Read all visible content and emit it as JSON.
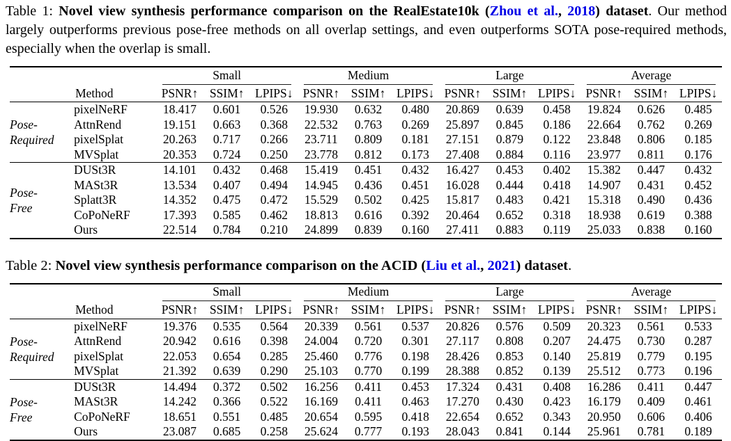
{
  "captions": {
    "t1": {
      "label": "Table 1: ",
      "title_pre": "Novel view synthesis performance comparison on the RealEstate10k (",
      "cite_authors": "Zhou et al.",
      "cite_sep": ", ",
      "cite_year": "2018",
      "title_post": ") dataset",
      "body": ". Our method largely outperforms previous pose-free methods on all overlap settings, and even outperforms SOTA pose-required methods, especially when the overlap is small."
    },
    "t2": {
      "label": "Table 2: ",
      "title_pre": "Novel view synthesis performance comparison on the ACID (",
      "cite_authors": "Liu et al.",
      "cite_sep": ", ",
      "cite_year": "2021",
      "title_post": ") dataset",
      "body": "."
    }
  },
  "link_color": "#0000e6",
  "tables": [
    {
      "name": "realestate10k-results",
      "method_header": "Method",
      "col_groups": [
        "Small",
        "Medium",
        "Large",
        "Average"
      ],
      "metric_headers": [
        "PSNR↑",
        "SSIM↑",
        "LPIPS↓"
      ],
      "sections": [
        {
          "label_lines": [
            "Pose-",
            "Required"
          ],
          "rows": [
            {
              "method": "pixelNeRF",
              "values": [
                "18.417",
                "0.601",
                "0.526",
                "19.930",
                "0.632",
                "0.480",
                "20.869",
                "0.639",
                "0.458",
                "19.824",
                "0.626",
                "0.485"
              ],
              "bold": [],
              "method_bold": false
            },
            {
              "method": "AttnRend",
              "values": [
                "19.151",
                "0.663",
                "0.368",
                "22.532",
                "0.763",
                "0.269",
                "25.897",
                "0.845",
                "0.186",
                "22.664",
                "0.762",
                "0.269"
              ],
              "bold": [],
              "method_bold": false
            },
            {
              "method": "pixelSplat",
              "values": [
                "20.263",
                "0.717",
                "0.266",
                "23.711",
                "0.809",
                "0.181",
                "27.151",
                "0.879",
                "0.122",
                "23.848",
                "0.806",
                "0.185"
              ],
              "bold": [],
              "method_bold": false
            },
            {
              "method": "MVSplat",
              "values": [
                "20.353",
                "0.724",
                "0.250",
                "23.778",
                "0.812",
                "0.173",
                "27.408",
                "0.884",
                "0.116",
                "23.977",
                "0.811",
                "0.176"
              ],
              "bold": [
                7,
                8
              ],
              "method_bold": false
            }
          ]
        },
        {
          "label_lines": [
            "Pose-",
            "Free"
          ],
          "rows": [
            {
              "method": "DUSt3R",
              "values": [
                "14.101",
                "0.432",
                "0.468",
                "15.419",
                "0.451",
                "0.432",
                "16.427",
                "0.453",
                "0.402",
                "15.382",
                "0.447",
                "0.432"
              ],
              "bold": [],
              "method_bold": false
            },
            {
              "method": "MASt3R",
              "values": [
                "13.534",
                "0.407",
                "0.494",
                "14.945",
                "0.436",
                "0.451",
                "16.028",
                "0.444",
                "0.418",
                "14.907",
                "0.431",
                "0.452"
              ],
              "bold": [],
              "method_bold": false
            },
            {
              "method": "Splatt3R",
              "values": [
                "14.352",
                "0.475",
                "0.472",
                "15.529",
                "0.502",
                "0.425",
                "15.817",
                "0.483",
                "0.421",
                "15.318",
                "0.490",
                "0.436"
              ],
              "bold": [],
              "method_bold": false
            },
            {
              "method": "CoPoNeRF",
              "values": [
                "17.393",
                "0.585",
                "0.462",
                "18.813",
                "0.616",
                "0.392",
                "20.464",
                "0.652",
                "0.318",
                "18.938",
                "0.619",
                "0.388"
              ],
              "bold": [],
              "method_bold": false
            },
            {
              "method": "Ours",
              "values": [
                "22.514",
                "0.784",
                "0.210",
                "24.899",
                "0.839",
                "0.160",
                "27.411",
                "0.883",
                "0.119",
                "25.033",
                "0.838",
                "0.160"
              ],
              "bold": [
                0,
                1,
                2,
                3,
                4,
                5,
                6,
                9,
                10,
                11
              ],
              "method_bold": true
            }
          ]
        }
      ]
    },
    {
      "name": "acid-results",
      "method_header": "Method",
      "col_groups": [
        "Small",
        "Medium",
        "Large",
        "Average"
      ],
      "metric_headers": [
        "PSNR↑",
        "SSIM↑",
        "LPIPS↓"
      ],
      "sections": [
        {
          "label_lines": [
            "Pose-",
            "Required"
          ],
          "rows": [
            {
              "method": "pixelNeRF",
              "values": [
                "19.376",
                "0.535",
                "0.564",
                "20.339",
                "0.561",
                "0.537",
                "20.826",
                "0.576",
                "0.509",
                "20.323",
                "0.561",
                "0.533"
              ],
              "bold": [],
              "method_bold": false
            },
            {
              "method": "AttnRend",
              "values": [
                "20.942",
                "0.616",
                "0.398",
                "24.004",
                "0.720",
                "0.301",
                "27.117",
                "0.808",
                "0.207",
                "24.475",
                "0.730",
                "0.287"
              ],
              "bold": [],
              "method_bold": false
            },
            {
              "method": "pixelSplat",
              "values": [
                "22.053",
                "0.654",
                "0.285",
                "25.460",
                "0.776",
                "0.198",
                "28.426",
                "0.853",
                "0.140",
                "25.819",
                "0.779",
                "0.195"
              ],
              "bold": [
                6,
                7
              ],
              "method_bold": false
            },
            {
              "method": "MVSplat",
              "values": [
                "21.392",
                "0.639",
                "0.290",
                "25.103",
                "0.770",
                "0.199",
                "28.388",
                "0.852",
                "0.139",
                "25.512",
                "0.773",
                "0.196"
              ],
              "bold": [
                8
              ],
              "method_bold": false
            }
          ]
        },
        {
          "label_lines": [
            "Pose-",
            "Free"
          ],
          "rows": [
            {
              "method": "DUSt3R",
              "values": [
                "14.494",
                "0.372",
                "0.502",
                "16.256",
                "0.411",
                "0.453",
                "17.324",
                "0.431",
                "0.408",
                "16.286",
                "0.411",
                "0.447"
              ],
              "bold": [],
              "method_bold": false
            },
            {
              "method": "MASt3R",
              "values": [
                "14.242",
                "0.366",
                "0.522",
                "16.169",
                "0.411",
                "0.463",
                "17.270",
                "0.430",
                "0.423",
                "16.179",
                "0.409",
                "0.461"
              ],
              "bold": [],
              "method_bold": false
            },
            {
              "method": "CoPoNeRF",
              "values": [
                "18.651",
                "0.551",
                "0.485",
                "20.654",
                "0.595",
                "0.418",
                "22.654",
                "0.652",
                "0.343",
                "20.950",
                "0.606",
                "0.406"
              ],
              "bold": [],
              "method_bold": false
            },
            {
              "method": "Ours",
              "values": [
                "23.087",
                "0.685",
                "0.258",
                "25.624",
                "0.777",
                "0.193",
                "28.043",
                "0.841",
                "0.144",
                "25.961",
                "0.781",
                "0.189"
              ],
              "bold": [
                0,
                1,
                2,
                3,
                4,
                5,
                9,
                10,
                11
              ],
              "method_bold": true
            }
          ]
        }
      ]
    }
  ]
}
